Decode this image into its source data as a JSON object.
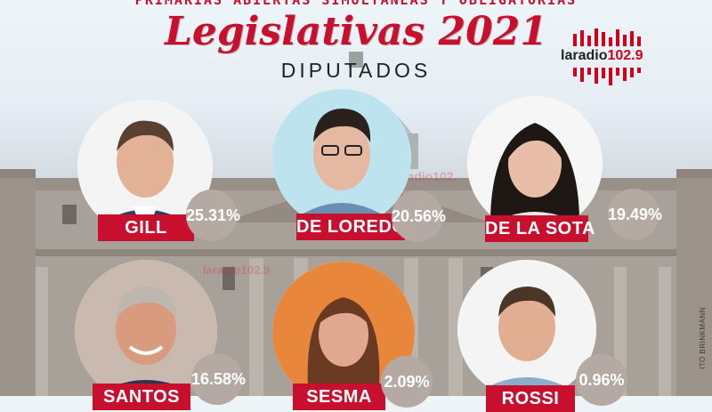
{
  "header": {
    "supertitle": "PRIMARIAS ABIERTAS SIMULTANEAS Y OBLIGATORIAS",
    "title": "Legislativas 2021",
    "subtitle": "DIPUTADOS"
  },
  "logo": {
    "prefix": "laradio",
    "number": "102.9"
  },
  "watermarks": [
    "radio102.",
    "laradio102.9"
  ],
  "colors": {
    "accent": "#c8102e",
    "badge": "#b5a9a4"
  },
  "candidates": [
    {
      "name": "GILL",
      "percent": "25.31%"
    },
    {
      "name": "DE LOREDO",
      "percent": "20.56%"
    },
    {
      "name": "DE LA SOTA",
      "percent": "19.49%"
    },
    {
      "name": "SANTOS",
      "percent": "16.58%"
    },
    {
      "name": "SESMA",
      "percent": "2.09%"
    },
    {
      "name": "ROSSI",
      "percent": "0.96%"
    }
  ],
  "photo_credit": "ITO BRINKMANN"
}
